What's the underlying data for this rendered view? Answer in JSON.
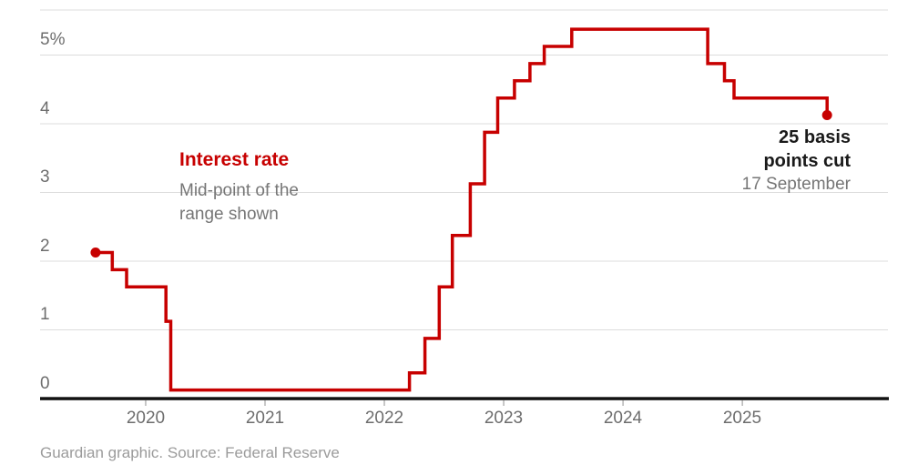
{
  "chart_data": {
    "type": "line",
    "step": true,
    "title": "Interest rate",
    "subtitle_lines": [
      "Mid-point of the",
      "range shown"
    ],
    "source": "Guardian graphic. Source: Federal Reserve",
    "x_ticks": [
      2020,
      2021,
      2022,
      2023,
      2024,
      2025
    ],
    "x_tick_labels": [
      "2020",
      "2021",
      "2022",
      "2023",
      "2024",
      "2025"
    ],
    "y_ticks": [
      0,
      1,
      2,
      3,
      4,
      5
    ],
    "y_tick_labels": [
      "0",
      "1",
      "2",
      "3",
      "4",
      "5%"
    ],
    "xlim": [
      2019.115,
      2026.22
    ],
    "ylim": [
      0,
      5.655
    ],
    "grid": true,
    "legend_position": "inside-left",
    "series": [
      {
        "name": "Interest rate (mid-point of range, %)",
        "color": "#c70000",
        "endpoint_dots": true,
        "points": [
          [
            2019.58,
            2.125
          ],
          [
            2019.72,
            1.875
          ],
          [
            2019.84,
            1.625
          ],
          [
            2020.17,
            1.125
          ],
          [
            2020.21,
            0.125
          ],
          [
            2022.21,
            0.375
          ],
          [
            2022.34,
            0.875
          ],
          [
            2022.46,
            1.625
          ],
          [
            2022.57,
            2.375
          ],
          [
            2022.72,
            3.125
          ],
          [
            2022.84,
            3.875
          ],
          [
            2022.95,
            4.375
          ],
          [
            2023.09,
            4.625
          ],
          [
            2023.22,
            4.875
          ],
          [
            2023.34,
            5.125
          ],
          [
            2023.57,
            5.375
          ],
          [
            2024.71,
            4.875
          ],
          [
            2024.85,
            4.625
          ],
          [
            2024.93,
            4.375
          ],
          [
            2025.71,
            4.125
          ]
        ]
      }
    ],
    "annotation_cut": {
      "line1": "25 basis",
      "line2": "points cut",
      "date": "17 September"
    },
    "colors": {
      "line": "#c70000",
      "grid": "#dcdcdc",
      "axis": "#121212",
      "tick": "#b5b5b5",
      "axis_label": "#6d6d6d",
      "muted_text": "#767676",
      "source_text": "#9b9b9b",
      "annotation_dark": "#1a1a1a",
      "accent_text": "#c70000"
    }
  }
}
